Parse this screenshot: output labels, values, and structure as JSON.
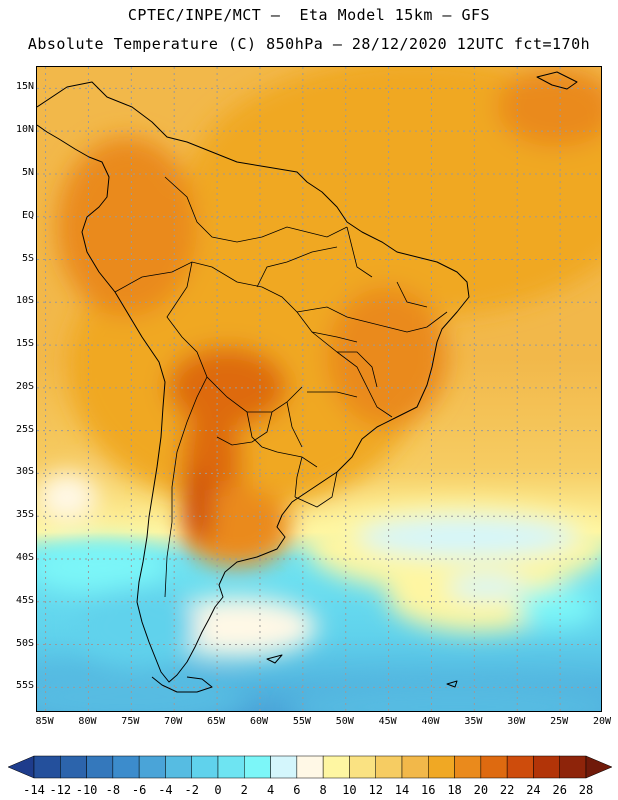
{
  "header": {
    "line1": "CPTEC/INPE/MCT –  Eta Model 15km – GFS",
    "line2": "Absolute Temperature (C) 850hPa – 28/12/2020 12UTC fct=170h"
  },
  "map": {
    "lat_labels": [
      "15N",
      "10N",
      "5N",
      "EQ",
      "5S",
      "10S",
      "15S",
      "20S",
      "25S",
      "30S",
      "35S",
      "40S",
      "45S",
      "50S",
      "55S"
    ],
    "lon_labels": [
      "85W",
      "80W",
      "75W",
      "70W",
      "65W",
      "60W",
      "55W",
      "50W",
      "45W",
      "40W",
      "35W",
      "30W",
      "25W",
      "20W"
    ],
    "lat_range": [
      17.5,
      -58
    ],
    "lon_range": [
      -86,
      -20
    ]
  },
  "colorbar": {
    "labels": [
      "-14",
      "-12",
      "-10",
      "-8",
      "-6",
      "-4",
      "-2",
      "0",
      "2",
      "4",
      "6",
      "8",
      "10",
      "12",
      "14",
      "16",
      "18",
      "20",
      "22",
      "24",
      "26",
      "28"
    ],
    "colors": [
      "#1e3c8c",
      "#24509c",
      "#2c64ac",
      "#3478bc",
      "#3c8ccc",
      "#4aa4d8",
      "#56bce2",
      "#60d2ec",
      "#6ee4f2",
      "#7cf6f8",
      "#d4f6fc",
      "#fff8e6",
      "#fef6a2",
      "#fae282",
      "#f6cc62",
      "#f2b84a",
      "#f0a824",
      "#ea8a1c",
      "#de6a10",
      "#ce4c0c",
      "#b23408",
      "#8e240a",
      "#701a0a"
    ]
  }
}
